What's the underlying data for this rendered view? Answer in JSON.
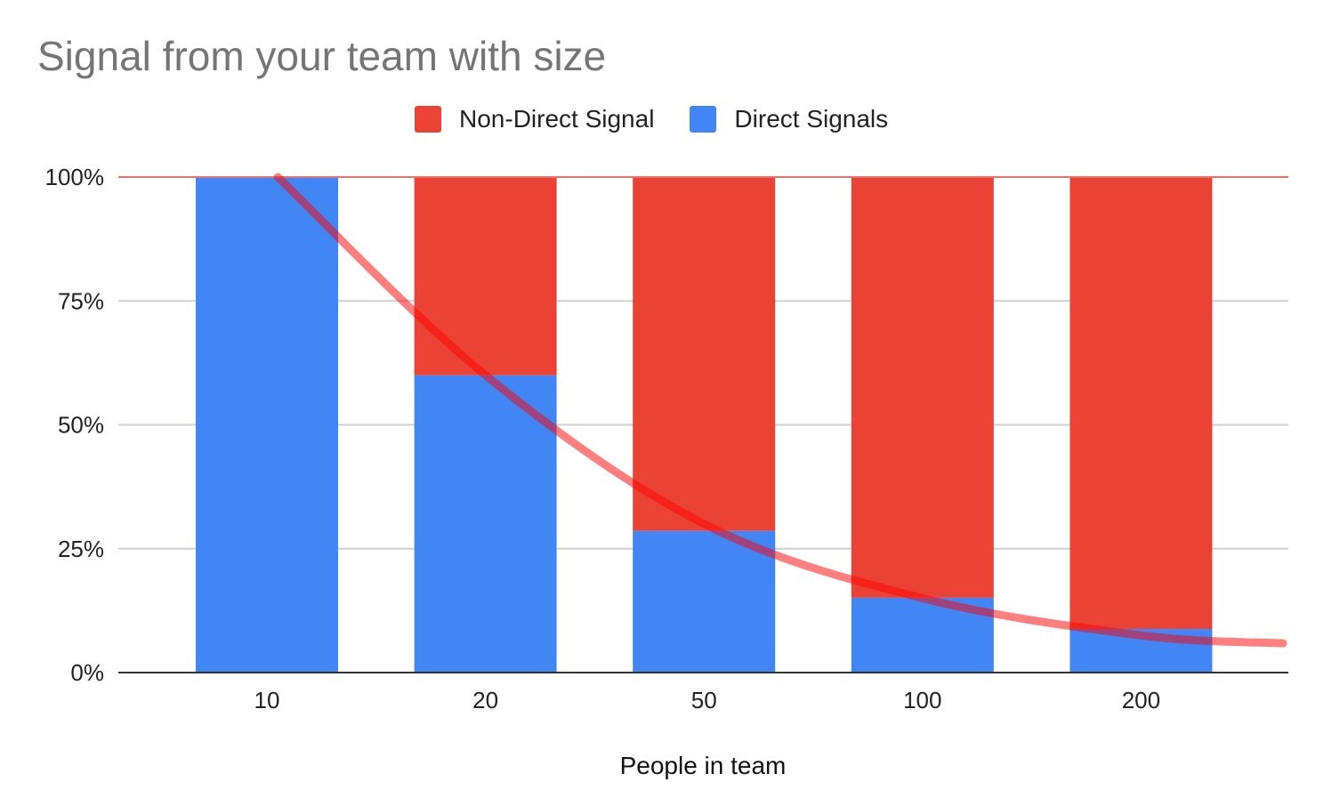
{
  "chart_data": {
    "type": "bar",
    "stacked": true,
    "title": "Signal from your team with size",
    "xlabel": "People in team",
    "ylabel": "",
    "categories": [
      "10",
      "20",
      "50",
      "100",
      "200"
    ],
    "series": [
      {
        "name": "Direct Signals",
        "color": "#4285f4",
        "values": [
          1.0,
          0.6,
          0.286,
          0.151,
          0.088
        ]
      },
      {
        "name": "Non-Direct Signal",
        "color": "#ea4335",
        "values": [
          0.0,
          0.4,
          0.714,
          0.849,
          0.912
        ]
      }
    ],
    "legend_order": [
      "Non-Direct Signal",
      "Direct Signals"
    ],
    "legend_position": "top",
    "ylim": [
      0,
      1
    ],
    "yticks": [
      {
        "value": 0,
        "label": "0%"
      },
      {
        "value": 0.25,
        "label": "25%"
      },
      {
        "value": 0.5,
        "label": "50%"
      },
      {
        "value": 0.75,
        "label": "75%"
      },
      {
        "value": 1,
        "label": "100%"
      }
    ],
    "grid": true,
    "trendline": {
      "type": "exponential",
      "color": "#ff0000",
      "opacity": 0.5,
      "points": [
        {
          "x": 0.05,
          "y": 1.0
        },
        {
          "x": 1.0,
          "y": 0.6
        },
        {
          "x": 2.0,
          "y": 0.3
        },
        {
          "x": 3.0,
          "y": 0.15
        },
        {
          "x": 4.0,
          "y": 0.075
        },
        {
          "x": 4.65,
          "y": 0.059
        }
      ]
    }
  }
}
